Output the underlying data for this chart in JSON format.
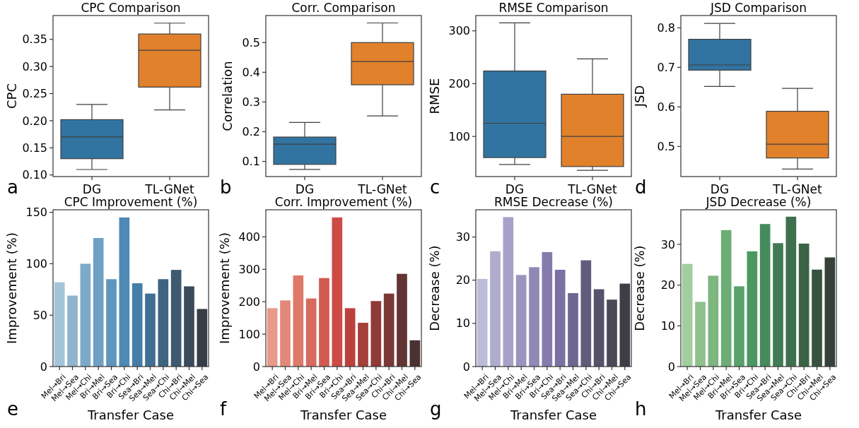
{
  "chart_data": [
    {
      "type": "box",
      "title": "CPC Comparison",
      "ylabel": "CPC",
      "categories": [
        "DG",
        "TL-GNet"
      ],
      "colors": [
        "#3274a1",
        "#e1812c"
      ],
      "ylim": [
        0.097,
        0.394
      ],
      "yticks": [
        {
          "value": 0.1,
          "label": "0.10"
        },
        {
          "value": 0.15,
          "label": "0.15"
        },
        {
          "value": 0.2,
          "label": "0.20"
        },
        {
          "value": 0.25,
          "label": "0.25"
        },
        {
          "value": 0.3,
          "label": "0.30"
        },
        {
          "value": 0.35,
          "label": "0.35"
        }
      ],
      "grid": false,
      "annotations": [
        "a"
      ],
      "boxes": [
        {
          "low": 0.11,
          "q1": 0.13,
          "median": 0.17,
          "q3": 0.202,
          "high": 0.23
        },
        {
          "low": 0.22,
          "q1": 0.262,
          "median": 0.33,
          "q3": 0.36,
          "high": 0.38
        }
      ]
    },
    {
      "type": "box",
      "title": "Corr. Comparison",
      "ylabel": "Correlation",
      "categories": [
        "DG",
        "TL-GNet"
      ],
      "colors": [
        "#3274a1",
        "#e1812c"
      ],
      "ylim": [
        0.049,
        0.591
      ],
      "yticks": [
        0.1,
        0.2,
        0.3,
        0.4,
        0.5
      ],
      "grid": false,
      "annotations": [
        "b"
      ],
      "boxes": [
        {
          "low": 0.073,
          "q1": 0.09,
          "median": 0.158,
          "q3": 0.182,
          "high": 0.231
        },
        {
          "low": 0.253,
          "q1": 0.358,
          "median": 0.436,
          "q3": 0.5,
          "high": 0.566
        }
      ]
    },
    {
      "type": "box",
      "title": "RMSE Comparison",
      "ylabel": "RMSE",
      "categories": [
        "DG",
        "TL-GNet"
      ],
      "colors": [
        "#3274a1",
        "#e1812c"
      ],
      "ylim": [
        24,
        329
      ],
      "yticks": [
        100,
        200,
        300
      ],
      "grid": false,
      "annotations": [
        "c"
      ],
      "boxes": [
        {
          "low": 47,
          "q1": 60,
          "median": 125,
          "q3": 224,
          "high": 315
        },
        {
          "low": 36,
          "q1": 43,
          "median": 100,
          "q3": 180,
          "high": 247
        }
      ]
    },
    {
      "type": "box",
      "title": "JSD Comparison",
      "ylabel": "JSD",
      "categories": [
        "DG",
        "TL-GNet"
      ],
      "colors": [
        "#3274a1",
        "#e1812c"
      ],
      "ylim": [
        0.424,
        0.831
      ],
      "yticks": [
        0.5,
        0.6,
        0.7,
        0.8
      ],
      "grid": false,
      "annotations": [
        "d"
      ],
      "boxes": [
        {
          "low": 0.652,
          "q1": 0.693,
          "median": 0.706,
          "q3": 0.771,
          "high": 0.811
        },
        {
          "low": 0.443,
          "q1": 0.471,
          "median": 0.506,
          "q3": 0.589,
          "high": 0.647
        }
      ]
    },
    {
      "type": "bar",
      "title": "CPC Improvement (%)",
      "xlabel": "Transfer Case",
      "ylabel": "Improvement (%)",
      "categories": [
        "Mel→Bri",
        "Mel→Sea",
        "Mel→Chi",
        "Bri→Mel",
        "Bri→Sea",
        "Bri→Chi",
        "Sea→Bri",
        "Sea→Mel",
        "Sea→Chi",
        "Chi→Bri",
        "Chi→Mel",
        "Chi→Sea"
      ],
      "ylim": [
        0,
        152.5
      ],
      "yticks": [
        0,
        50,
        100,
        150
      ],
      "grid": false,
      "annotations": [
        "e"
      ],
      "values": [
        82,
        69,
        100,
        125,
        85,
        145,
        81,
        71,
        85,
        94,
        78,
        56
      ],
      "colors": [
        "#a3c4d9",
        "#8fb4cf",
        "#7eaac9",
        "#6ea0c4",
        "#5f96be",
        "#4f89b5",
        "#447ea9",
        "#416f93",
        "#3f6480",
        "#3d5a70",
        "#3a4a5b",
        "#363d47"
      ]
    },
    {
      "type": "bar",
      "title": "Corr. Improvement (%)",
      "xlabel": "Transfer Case",
      "ylabel": "Improvement (%)",
      "categories": [
        "Mel→Bri",
        "Mel→Sea",
        "Mel→Chi",
        "Bri→Mel",
        "Bri→Sea",
        "Bri→Chi",
        "Sea→Bri",
        "Sea→Mel",
        "Sea→Chi",
        "Chi→Bri",
        "Chi→Mel",
        "Chi→Sea"
      ],
      "ylim": [
        0,
        483.6
      ],
      "yticks": [
        0,
        100,
        200,
        300,
        400
      ],
      "grid": false,
      "annotations": [
        "f"
      ],
      "values": [
        180,
        204,
        281,
        210,
        273,
        460,
        180,
        135,
        202,
        225,
        286,
        81
      ],
      "colors": [
        "#e8998a",
        "#e2887a",
        "#de786b",
        "#d86a5e",
        "#d35a50",
        "#cd4a45",
        "#bc403c",
        "#a53f3a",
        "#8f3b38",
        "#7a3836",
        "#623433",
        "#4b3130"
      ]
    },
    {
      "type": "bar",
      "title": "RMSE Decrease (%)",
      "xlabel": "Transfer Case",
      "ylabel": "Decrease (%)",
      "categories": [
        "Mel→Bri",
        "Mel→Sea",
        "Mel→Chi",
        "Bri→Mel",
        "Bri→Sea",
        "Bri→Chi",
        "Sea→Bri",
        "Sea→Mel",
        "Sea→Chi",
        "Chi→Bri",
        "Chi→Mel",
        "Chi→Sea"
      ],
      "ylim": [
        0,
        36.3
      ],
      "yticks": [
        0,
        10,
        20,
        30
      ],
      "grid": false,
      "annotations": [
        "g"
      ],
      "values": [
        20.3,
        26.7,
        34.6,
        21.2,
        23,
        26.5,
        22.4,
        17,
        24.6,
        17.9,
        15.5,
        19.2
      ],
      "colors": [
        "#bdbcd8",
        "#b0acce",
        "#a5a1c8",
        "#9a95c0",
        "#8f89b6",
        "#857bad",
        "#7a70a2",
        "#6e6790",
        "#625b7c",
        "#575169",
        "#4b4857",
        "#3e3c46"
      ]
    },
    {
      "type": "bar",
      "title": "JSD Decrease (%)",
      "xlabel": "Transfer Case",
      "ylabel": "Decrease (%)",
      "categories": [
        "Mel→Bri",
        "Mel→Sea",
        "Mel→Chi",
        "Bri→Mel",
        "Bri→Sea",
        "Bri→Chi",
        "Sea→Bri",
        "Sea→Mel",
        "Sea→Chi",
        "Chi→Bri",
        "Chi→Mel",
        "Chi→Sea"
      ],
      "ylim": [
        0,
        38.5
      ],
      "yticks": [
        0,
        10,
        20,
        30
      ],
      "grid": false,
      "annotations": [
        "h"
      ],
      "values": [
        25.2,
        15.9,
        22.3,
        33.5,
        19.7,
        28.3,
        35,
        30.3,
        36.8,
        30.2,
        23.8,
        26.8
      ],
      "colors": [
        "#a1cd9f",
        "#8fc08d",
        "#7db67f",
        "#6cad75",
        "#5ba16a",
        "#4c9860",
        "#468b5c",
        "#417b55",
        "#3e704e",
        "#3a6445",
        "#37523e",
        "#354138"
      ]
    }
  ]
}
